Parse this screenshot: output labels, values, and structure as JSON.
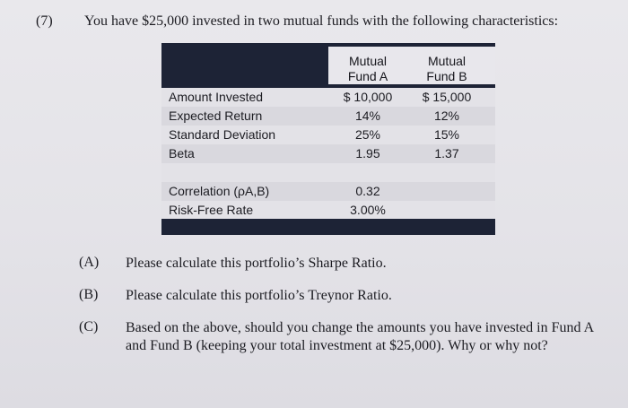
{
  "question": {
    "number": "(7)",
    "text": "You have $25,000 invested in two mutual funds with the following characteristics:"
  },
  "table": {
    "header": {
      "fund_a": [
        "Mutual",
        "Fund A"
      ],
      "fund_b": [
        "Mutual",
        "Fund B"
      ]
    },
    "rows": [
      {
        "label": "Amount Invested",
        "a": "$ 10,000",
        "b": "$ 15,000"
      },
      {
        "label": "Expected Return",
        "a": "14%",
        "b": "12%"
      },
      {
        "label": "Standard Deviation",
        "a": "25%",
        "b": "15%"
      },
      {
        "label": "Beta",
        "a": "1.95",
        "b": "1.37"
      }
    ],
    "extra_rows": [
      {
        "label": "Correlation (ρA,B)",
        "a": "0.32"
      },
      {
        "label": "Risk-Free Rate",
        "a": "3.00%"
      }
    ]
  },
  "parts": [
    {
      "letter": "(A)",
      "text": "Please calculate this portfolio’s Sharpe Ratio."
    },
    {
      "letter": "(B)",
      "text": "Please calculate this portfolio’s Treynor Ratio."
    },
    {
      "letter": "(C)",
      "text_lines": [
        "Based on the above, should you change the amounts you have invested in Fund A",
        "and Fund B (keeping your total investment at $25,000).  Why or why not?"
      ]
    }
  ]
}
